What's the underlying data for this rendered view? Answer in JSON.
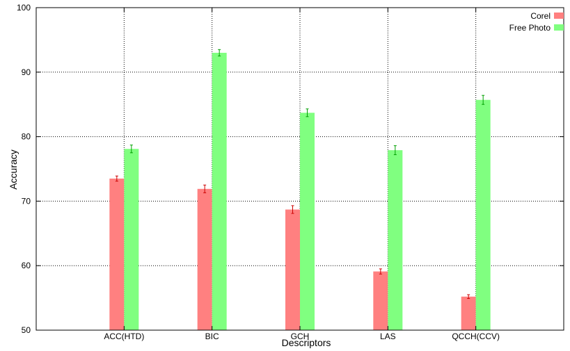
{
  "chart_data": {
    "type": "bar",
    "title": "",
    "xlabel": "Descriptors",
    "ylabel": "Accuracy",
    "ylim": [
      50,
      100
    ],
    "yticks": [
      50,
      60,
      70,
      80,
      90,
      100
    ],
    "grid": true,
    "legend_position": "top-right",
    "categories": [
      "ACC(HTD)",
      "BIC",
      "GCH",
      "LAS",
      "QCCH(CCV)"
    ],
    "series": [
      {
        "name": "Corel",
        "color": "#ff8080",
        "error_color": "#cc0000",
        "values": [
          73.5,
          71.9,
          68.7,
          59.1,
          55.2
        ],
        "errors": [
          0.4,
          0.6,
          0.6,
          0.4,
          0.3
        ]
      },
      {
        "name": "Free Photo",
        "color": "#80ff80",
        "error_color": "#00a000",
        "values": [
          78.1,
          93.0,
          83.7,
          77.9,
          85.7
        ],
        "errors": [
          0.6,
          0.5,
          0.6,
          0.7,
          0.7
        ]
      }
    ]
  }
}
